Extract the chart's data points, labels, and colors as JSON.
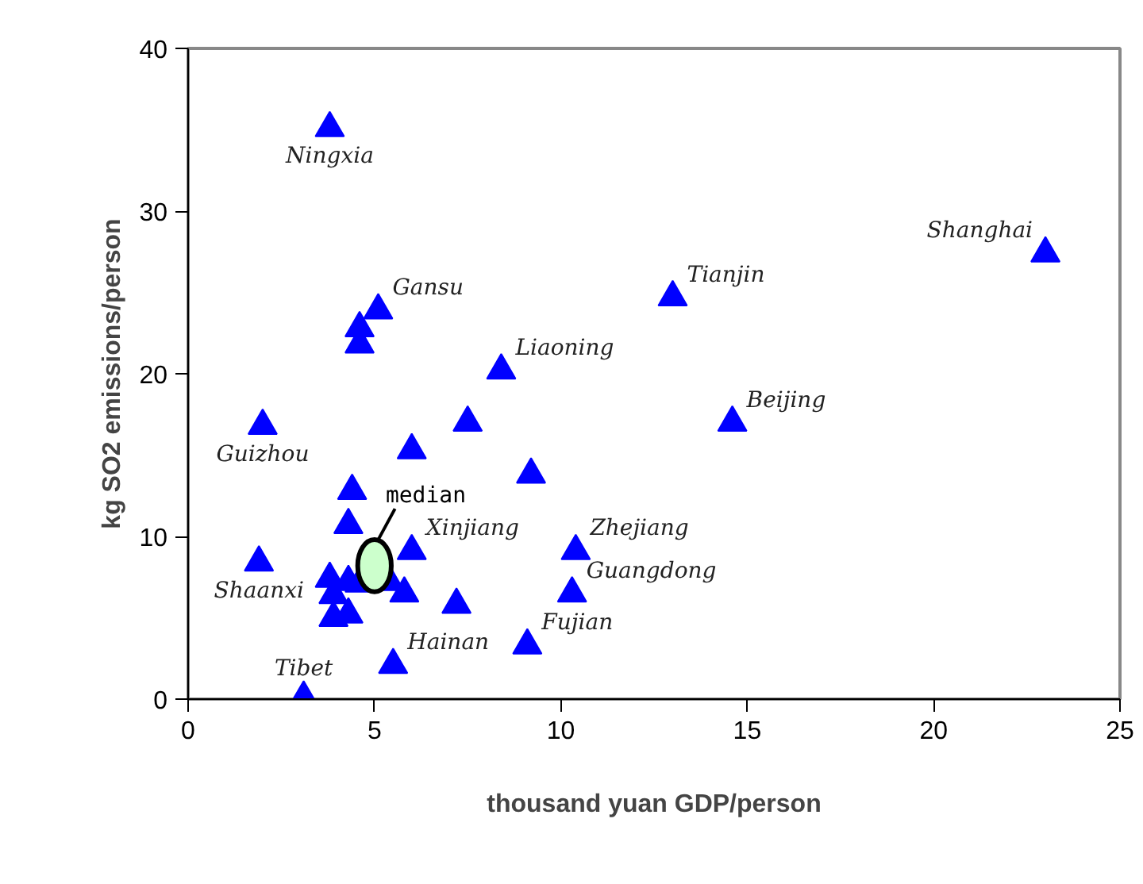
{
  "chart_data": {
    "type": "scatter",
    "xlabel": "thousand yuan GDP/person",
    "ylabel": "kg SO2 emissions/person",
    "xlim": [
      0,
      25
    ],
    "ylim": [
      0,
      40
    ],
    "xticks": [
      0,
      5,
      10,
      15,
      20,
      25
    ],
    "yticks": [
      0,
      10,
      20,
      30,
      40
    ],
    "grid": false,
    "legend": false,
    "series": [
      {
        "color": "#0000ff",
        "marker": "triangle",
        "x": [
          3.8,
          5.1,
          4.6,
          4.6,
          8.4,
          2.0,
          7.5,
          6.0,
          9.2,
          4.4,
          4.3,
          1.9,
          6.0,
          10.4,
          3.8,
          4.3,
          4.6,
          5.4,
          5.8,
          3.9,
          10.3,
          7.2,
          3.9,
          4.3,
          9.1,
          5.5,
          3.1,
          23.0,
          13.0,
          14.6
        ],
        "values": [
          35.1,
          23.9,
          22.8,
          21.8,
          20.2,
          16.8,
          17.0,
          15.3,
          13.8,
          12.8,
          10.7,
          8.4,
          9.1,
          9.1,
          7.4,
          7.2,
          7.1,
          7.2,
          6.5,
          6.4,
          6.5,
          5.8,
          5.0,
          5.2,
          3.3,
          2.1,
          0.1,
          27.4,
          24.7,
          17.0
        ]
      },
      {
        "name": "median",
        "color": "#ccffcc",
        "marker": "circle",
        "x": [
          5.0
        ],
        "values": [
          8.2
        ]
      }
    ],
    "annotations": [
      {
        "text": "Ningxia",
        "x": 3.8,
        "y": 35.1
      },
      {
        "text": "Gansu",
        "x": 5.1,
        "y": 23.9
      },
      {
        "text": "Tianjin",
        "x": 13.0,
        "y": 24.7
      },
      {
        "text": "Shanghai",
        "x": 23.0,
        "y": 27.4
      },
      {
        "text": "Liaoning",
        "x": 8.4,
        "y": 20.2
      },
      {
        "text": "Guizhou",
        "x": 2.0,
        "y": 16.8
      },
      {
        "text": "Beijing",
        "x": 14.6,
        "y": 17.0
      },
      {
        "text": "Xinjiang",
        "x": 6.0,
        "y": 9.1
      },
      {
        "text": "Zhejiang",
        "x": 10.4,
        "y": 9.1
      },
      {
        "text": "Shaanxi",
        "x": 1.9,
        "y": 8.4
      },
      {
        "text": "Guangdong",
        "x": 10.3,
        "y": 6.5
      },
      {
        "text": "Tibet",
        "x": 3.1,
        "y": 0.1
      },
      {
        "text": "Hainan",
        "x": 5.5,
        "y": 2.1
      },
      {
        "text": "Fujian",
        "x": 9.1,
        "y": 3.3
      }
    ]
  }
}
